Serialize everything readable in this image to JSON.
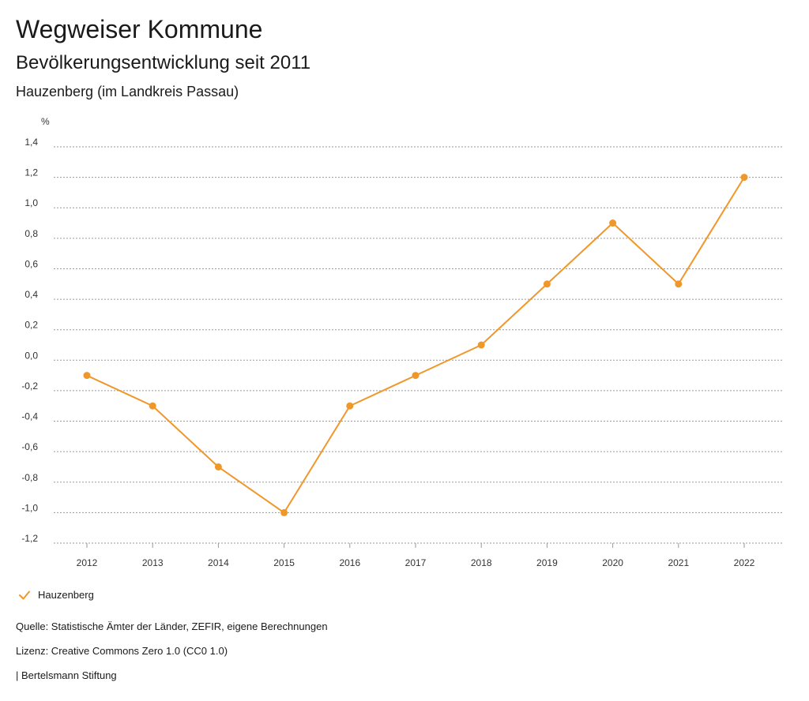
{
  "header": {
    "title": "Wegweiser Kommune",
    "subtitle": "Bevölkerungsentwicklung seit 2011",
    "region": "Hauzenberg (im Landkreis Passau)"
  },
  "chart_data": {
    "type": "line",
    "title": "Bevölkerungsentwicklung seit 2011",
    "ylabel": "%",
    "xlabel": "",
    "categories": [
      "2012",
      "2013",
      "2014",
      "2015",
      "2016",
      "2017",
      "2018",
      "2019",
      "2020",
      "2021",
      "2022"
    ],
    "series": [
      {
        "name": "Hauzenberg",
        "color": "#f0972a",
        "values": [
          -0.1,
          -0.3,
          -0.7,
          -1.0,
          -0.3,
          -0.1,
          0.1,
          0.5,
          0.9,
          0.5,
          1.2
        ]
      }
    ],
    "ylim": [
      -1.2,
      1.4
    ],
    "yticks": [
      1.4,
      1.2,
      1.0,
      0.8,
      0.6,
      0.4,
      0.2,
      0.0,
      -0.2,
      -0.4,
      -0.6,
      -0.8,
      -1.0,
      -1.2
    ],
    "ytick_labels": [
      "1,4",
      "1,2",
      "1,0",
      "0,8",
      "0,6",
      "0,4",
      "0,2",
      "0,0",
      "-0,2",
      "-0,4",
      "-0,6",
      "-0,8",
      "-1,0",
      "-1,2"
    ],
    "grid": true,
    "legend": "bottom-left"
  },
  "legend": {
    "label": "Hauzenberg",
    "icon": "checkmark-icon"
  },
  "footer": {
    "source": "Quelle: Statistische Ämter der Länder, ZEFIR, eigene Berechnungen",
    "license": "Lizenz: Creative Commons Zero 1.0 (CC0 1.0)",
    "publisher": "| Bertelsmann Stiftung"
  }
}
